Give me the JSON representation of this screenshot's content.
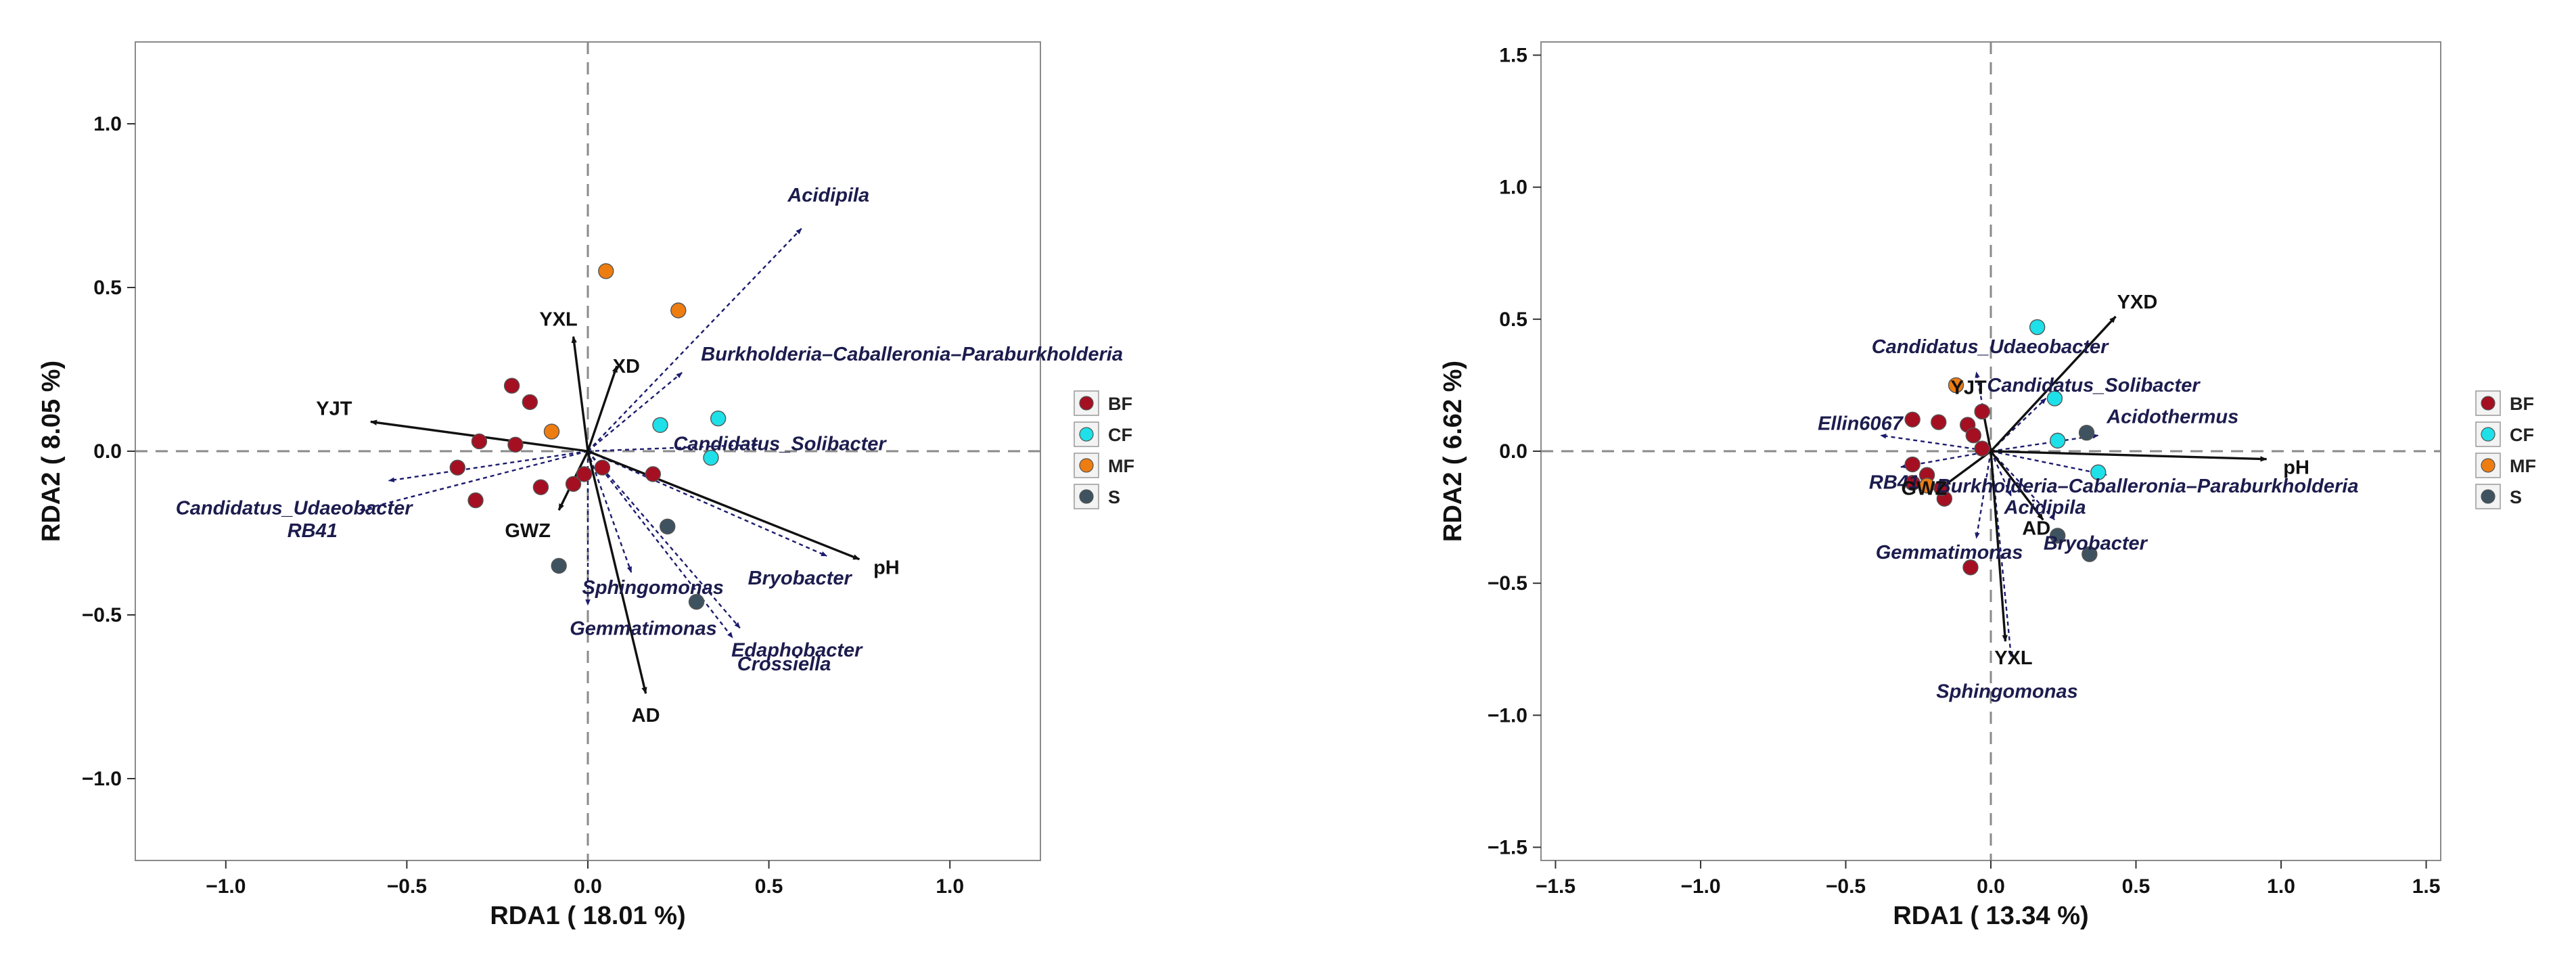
{
  "chart_data": [
    {
      "type": "scatter",
      "subtype": "rda-biplot",
      "xlabel": "RDA1 ( 18.01 %)",
      "ylabel": "RDA2 ( 8.05 %)",
      "xlim": [
        -1.25,
        1.25
      ],
      "ylim": [
        -1.25,
        1.25
      ],
      "xticks": [
        -1.0,
        -0.5,
        0.0,
        0.5,
        1.0
      ],
      "yticks": [
        -1.0,
        -0.5,
        0.0,
        0.5,
        1.0
      ],
      "xtick_labels": [
        "−1.0",
        "−0.5",
        "0.0",
        "0.5",
        "1.0"
      ],
      "ytick_labels": [
        "−1.0",
        "−0.5",
        "0.0",
        "0.5",
        "1.0"
      ],
      "grid": false,
      "legend_position": "right",
      "legend": [
        {
          "label": "BF",
          "color": "#a50f22"
        },
        {
          "label": "CF",
          "color": "#1ee0e8"
        },
        {
          "label": "MF",
          "color": "#ee7d11"
        },
        {
          "label": "S",
          "color": "#3f5260"
        }
      ],
      "samples": [
        {
          "group": "BF",
          "x": -0.21,
          "y": 0.2
        },
        {
          "group": "BF",
          "x": -0.16,
          "y": 0.15
        },
        {
          "group": "BF",
          "x": -0.3,
          "y": 0.03
        },
        {
          "group": "BF",
          "x": -0.2,
          "y": 0.02
        },
        {
          "group": "BF",
          "x": -0.36,
          "y": -0.05
        },
        {
          "group": "BF",
          "x": -0.31,
          "y": -0.15
        },
        {
          "group": "BF",
          "x": -0.13,
          "y": -0.11
        },
        {
          "group": "BF",
          "x": -0.04,
          "y": -0.1
        },
        {
          "group": "BF",
          "x": -0.01,
          "y": -0.07
        },
        {
          "group": "BF",
          "x": 0.04,
          "y": -0.05
        },
        {
          "group": "BF",
          "x": 0.18,
          "y": -0.07
        },
        {
          "group": "CF",
          "x": 0.2,
          "y": 0.08
        },
        {
          "group": "CF",
          "x": 0.36,
          "y": 0.1
        },
        {
          "group": "CF",
          "x": 0.34,
          "y": -0.02
        },
        {
          "group": "MF",
          "x": 0.05,
          "y": 0.55
        },
        {
          "group": "MF",
          "x": 0.25,
          "y": 0.43
        },
        {
          "group": "MF",
          "x": -0.1,
          "y": 0.06
        },
        {
          "group": "S",
          "x": -0.08,
          "y": -0.35
        },
        {
          "group": "S",
          "x": 0.22,
          "y": -0.23
        },
        {
          "group": "S",
          "x": 0.3,
          "y": -0.46
        }
      ],
      "env_vectors": [
        {
          "label": "YJT",
          "x": -0.6,
          "y": 0.09
        },
        {
          "label": "YXL",
          "x": -0.04,
          "y": 0.35
        },
        {
          "label": "XD",
          "x": 0.08,
          "y": 0.26
        },
        {
          "label": "GWZ",
          "x": -0.08,
          "y": -0.18
        },
        {
          "label": "AD",
          "x": 0.16,
          "y": -0.74
        },
        {
          "label": "pH",
          "x": 0.75,
          "y": -0.33
        }
      ],
      "species_vectors": [
        {
          "label": "Acidipila",
          "x": 0.59,
          "y": 0.68
        },
        {
          "label": "Burkholderia–Caballeronia–Paraburkholderia",
          "x": 0.26,
          "y": 0.24
        },
        {
          "label": "Candidatus_Solibacter",
          "x": 0.47,
          "y": 0.02
        },
        {
          "label": "Candidatus_Udaeobacter",
          "x": -0.55,
          "y": -0.09
        },
        {
          "label": "RB41",
          "x": -0.63,
          "y": -0.18
        },
        {
          "label": "Sphingomonas",
          "x": 0.12,
          "y": -0.37
        },
        {
          "label": "Gemmatimonas",
          "x": 0.0,
          "y": -0.47
        },
        {
          "label": "Bryobacter",
          "x": 0.66,
          "y": -0.32
        },
        {
          "label": "Edaphobacter",
          "x": 0.42,
          "y": -0.54
        },
        {
          "label": "Crossiella",
          "x": 0.4,
          "y": -0.57
        }
      ]
    },
    {
      "type": "scatter",
      "subtype": "rda-biplot",
      "xlabel": "RDA1 ( 13.34 %)",
      "ylabel": "RDA2 ( 6.62 %)",
      "xlim": [
        -1.55,
        1.55
      ],
      "ylim": [
        -1.55,
        1.55
      ],
      "xticks": [
        -1.5,
        -1.0,
        -0.5,
        0.0,
        0.5,
        1.0,
        1.5
      ],
      "yticks": [
        -1.5,
        -1.0,
        -0.5,
        0.0,
        0.5,
        1.0,
        1.5
      ],
      "xtick_labels": [
        "−1.5",
        "−1.0",
        "−0.5",
        "0.0",
        "0.5",
        "1.0",
        "1.5"
      ],
      "ytick_labels": [
        "−1.5",
        "−1.0",
        "−0.5",
        "0.0",
        "0.5",
        "1.0",
        "1.5"
      ],
      "grid": false,
      "legend_position": "right",
      "legend": [
        {
          "label": "BF",
          "color": "#a50f22"
        },
        {
          "label": "CF",
          "color": "#1ee0e8"
        },
        {
          "label": "MF",
          "color": "#ee7d11"
        },
        {
          "label": "S",
          "color": "#3f5260"
        }
      ],
      "samples": [
        {
          "group": "BF",
          "x": -0.18,
          "y": 0.11
        },
        {
          "group": "BF",
          "x": -0.27,
          "y": 0.12
        },
        {
          "group": "BF",
          "x": -0.03,
          "y": 0.15
        },
        {
          "group": "BF",
          "x": -0.08,
          "y": 0.1
        },
        {
          "group": "BF",
          "x": -0.06,
          "y": 0.06
        },
        {
          "group": "BF",
          "x": -0.27,
          "y": -0.05
        },
        {
          "group": "BF",
          "x": -0.22,
          "y": -0.09
        },
        {
          "group": "BF",
          "x": -0.27,
          "y": -0.12
        },
        {
          "group": "BF",
          "x": -0.16,
          "y": -0.18
        },
        {
          "group": "BF",
          "x": -0.17,
          "y": -0.14
        },
        {
          "group": "BF",
          "x": -0.03,
          "y": 0.01
        },
        {
          "group": "BF",
          "x": -0.07,
          "y": -0.44
        },
        {
          "group": "CF",
          "x": 0.16,
          "y": 0.47
        },
        {
          "group": "CF",
          "x": 0.22,
          "y": 0.2
        },
        {
          "group": "CF",
          "x": 0.23,
          "y": 0.04
        },
        {
          "group": "CF",
          "x": 0.37,
          "y": -0.08
        },
        {
          "group": "MF",
          "x": -0.12,
          "y": 0.25
        },
        {
          "group": "MF",
          "x": -0.22,
          "y": -0.13
        },
        {
          "group": "S",
          "x": 0.23,
          "y": -0.32
        },
        {
          "group": "S",
          "x": 0.34,
          "y": -0.39
        },
        {
          "group": "S",
          "x": 0.33,
          "y": 0.07
        }
      ],
      "env_vectors": [
        {
          "label": "YXD",
          "x": 0.43,
          "y": 0.51
        },
        {
          "label": "YJT",
          "x": -0.03,
          "y": 0.17
        },
        {
          "label": "pH",
          "x": 0.95,
          "y": -0.03
        },
        {
          "label": "GWZ",
          "x": -0.16,
          "y": -0.13
        },
        {
          "label": "AD",
          "x": 0.18,
          "y": -0.26
        },
        {
          "label": "YXL",
          "x": 0.05,
          "y": -0.72
        }
      ],
      "species_vectors": [
        {
          "label": "Candidatus_Udaeobacter",
          "x": -0.05,
          "y": 0.3
        },
        {
          "label": "Candidatus_Solibacter",
          "x": 0.19,
          "y": 0.2
        },
        {
          "label": "Acidothermus",
          "x": 0.37,
          "y": 0.06
        },
        {
          "label": "Ellin6067",
          "x": -0.38,
          "y": 0.06
        },
        {
          "label": "RB41",
          "x": -0.31,
          "y": -0.06
        },
        {
          "label": "Burkholderia–Caballeronia–Paraburkholderia",
          "x": 0.4,
          "y": -0.09
        },
        {
          "label": "Acidipila",
          "x": 0.07,
          "y": -0.17
        },
        {
          "label": "Bryobacter",
          "x": 0.22,
          "y": -0.26
        },
        {
          "label": "Gemmatimonas",
          "x": -0.05,
          "y": -0.33
        },
        {
          "label": "Sphingomonas",
          "x": 0.07,
          "y": -0.78
        }
      ]
    }
  ]
}
